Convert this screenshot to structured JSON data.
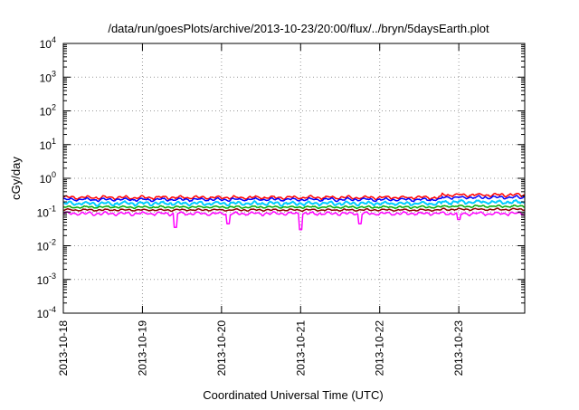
{
  "chart_data": {
    "type": "line",
    "title": "/data/run/goesPlots/archive/2013-10-23/20:00/flux/../bryn/5daysEarth.plot",
    "xlabel": "Coordinated Universal Time (UTC)",
    "ylabel": "cGy/day",
    "yscale": "log",
    "grid": true,
    "ylim": [
      0.0001,
      10000
    ],
    "xlim": [
      "2013-10-18 00:00",
      "2013-10-23 20:00"
    ],
    "x_ticks": [
      "2013-10-18",
      "2013-10-19",
      "2013-10-20",
      "2013-10-21",
      "2013-10-22",
      "2013-10-23"
    ],
    "y_ticks": [
      {
        "base": "10",
        "exp": "-4",
        "value": 0.0001
      },
      {
        "base": "10",
        "exp": "-3",
        "value": 0.001
      },
      {
        "base": "10",
        "exp": "-2",
        "value": 0.01
      },
      {
        "base": "10",
        "exp": "-1",
        "value": 0.1
      },
      {
        "base": "10",
        "exp": "0",
        "value": 1
      },
      {
        "base": "10",
        "exp": "1",
        "value": 10
      },
      {
        "base": "10",
        "exp": "2",
        "value": 100
      },
      {
        "base": "10",
        "exp": "3",
        "value": 1000
      },
      {
        "base": "10",
        "exp": "4",
        "value": 10000
      }
    ],
    "series": [
      {
        "color": "#ff0000",
        "level": 0.27,
        "noise": 0.12,
        "late_boost": 0.1
      },
      {
        "color": "#0000ff",
        "level": 0.235,
        "noise": 0.11,
        "late_boost": 0.08
      },
      {
        "color": "#00ccff",
        "level": 0.18,
        "noise": 0.14,
        "late_boost": 0.05
      },
      {
        "color": "#00aa00",
        "level": 0.14,
        "noise": 0.08,
        "late_boost": 0.03
      },
      {
        "color": "#8b0000",
        "level": 0.115,
        "noise": 0.07,
        "late_boost": 0.02
      },
      {
        "color": "#ff00ff",
        "level": 0.09,
        "noise": 0.12,
        "late_boost": 0.0,
        "dips": [
          {
            "x": "2013-10-19 10:00",
            "value": 0.035
          },
          {
            "x": "2013-10-20 02:00",
            "value": 0.045
          },
          {
            "x": "2013-10-21 00:00",
            "value": 0.03
          },
          {
            "x": "2013-10-21 18:00",
            "value": 0.045
          },
          {
            "x": "2013-10-23 00:00",
            "value": 0.06
          }
        ]
      }
    ]
  }
}
